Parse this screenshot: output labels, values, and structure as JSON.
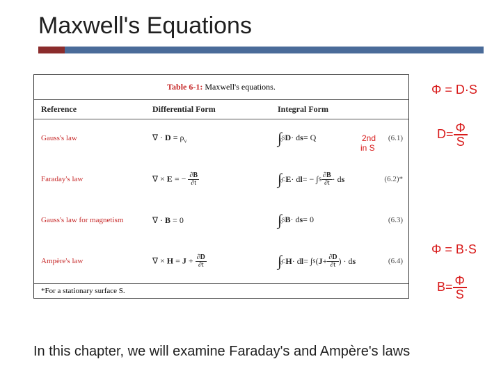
{
  "title": "Maxwell's Equations",
  "table": {
    "caption_label": "Table 6-1:",
    "caption_text": " Maxwell's equations.",
    "headers": {
      "ref": "Reference",
      "diff": "Differential Form",
      "int": "Integral Form"
    },
    "rows": [
      {
        "name": "Gauss's law",
        "diff_html": "∇ · <b>D</b> = ρ<sub class='sub'>v</sub>",
        "int_html": "<span class='int-sym'>∫</span><span class='sub'>S</span> <b>D</b> · d<b>s</b> = Q",
        "num": "(6.1)"
      },
      {
        "name": "Faraday's law",
        "diff_html": "∇ × <b>E</b> = − <span class='frac'><span class='num'>∂<b>B</b></span><span class='den'>∂t</span></span>",
        "int_html": "<span class='int-sym'>∫</span><span class='sub'>C</span> <b>E</b> · d<b>l</b> = − ∫<span class='sub'>S</span> <span class='frac'><span class='num'>∂<b>B</b></span><span class='den'>∂t</span></span> · d<b>s</b>",
        "num": "(6.2)*"
      },
      {
        "name": "Gauss's law for magnetism",
        "diff_html": "∇ · <b>B</b> = 0",
        "int_html": "<span class='int-sym'>∫</span><span class='sub'>S</span> <b>B</b> · d<b>s</b> = 0",
        "num": "(6.3)"
      },
      {
        "name": "Ampère's law",
        "diff_html": "∇ × <b>H</b> = <b>J</b> + <span class='frac'><span class='num'>∂<b>D</b></span><span class='den'>∂t</span></span>",
        "int_html": "<span class='int-sym'>∫</span><span class='sub'>C</span> <b>H</b> · d<b>l</b> = ∫<span class='sub'>S</span> (<b>J</b> + <span class='frac'><span class='num'>∂<b>D</b></span><span class='den'>∂t</span></span>) · d<b>s</b>",
        "num": "(6.4)"
      }
    ],
    "footnote": "*For a stationary surface S."
  },
  "bottom_text": "In this chapter, we will examine Faraday's and Ampère's laws",
  "annotations": {
    "a1": "Φ = D·S",
    "a2_top": "Φ",
    "a2_bot": "S",
    "a2_prefix": "D=",
    "a3_line1": "2nd",
    "a3_line2": "in S",
    "a4": "Φ = B·S",
    "a5_prefix": "B=",
    "a5_top": "Φ",
    "a5_bot": "S"
  },
  "colors": {
    "underline_left": "#8b2c2c",
    "underline_right": "#4a6b99",
    "annot": "#d81b1b",
    "caption_label": "#c62828"
  }
}
